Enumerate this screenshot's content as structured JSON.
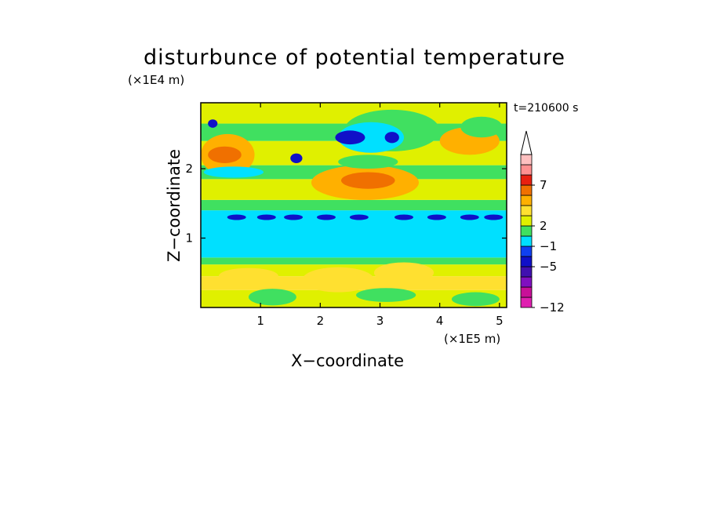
{
  "chart_data": {
    "type": "heatmap",
    "title": "disturbunce of potential temperature",
    "timestamp": "t=210600 s",
    "xlabel": "X−coordinate",
    "ylabel": "Z−coordinate",
    "x_unit": "(×1E5 m)",
    "z_unit": "(×1E4 m)",
    "xlim": [
      0,
      5.12
    ],
    "zlim": [
      0,
      2.95
    ],
    "x_ticks": [
      "1",
      "2",
      "3",
      "4",
      "5"
    ],
    "z_ticks": [
      "1",
      "2"
    ],
    "colorbar": {
      "orientation": "vertical",
      "extend": "max",
      "colors": [
        "#e020b0",
        "#c81098",
        "#8010c0",
        "#4010b0",
        "#1010c8",
        "#1040f0",
        "#00e0ff",
        "#40e060",
        "#e0f000",
        "#ffe030",
        "#ffb000",
        "#f07000",
        "#e82010",
        "#ff9090",
        "#ffc0c0",
        "#ffffff"
      ],
      "labels": [
        "−12",
        "−5",
        "−1",
        "2",
        "7"
      ],
      "label_values": [
        -12,
        -5,
        -1,
        2,
        7
      ]
    },
    "bands": [
      {
        "z": [
          0.0,
          0.25
        ],
        "color": "#e0f000"
      },
      {
        "z": [
          0.25,
          0.45
        ],
        "color": "#ffe030"
      },
      {
        "z": [
          0.45,
          0.62
        ],
        "color": "#e0f000"
      },
      {
        "z": [
          0.62,
          0.72
        ],
        "color": "#40e060"
      },
      {
        "z": [
          0.72,
          1.4
        ],
        "color": "#00e0ff"
      },
      {
        "z": [
          1.4,
          1.55
        ],
        "color": "#40e060"
      },
      {
        "z": [
          1.55,
          1.85
        ],
        "color": "#e0f000"
      },
      {
        "z": [
          1.85,
          2.05
        ],
        "color": "#40e060"
      },
      {
        "z": [
          2.05,
          2.4
        ],
        "color": "#e0f000"
      },
      {
        "z": [
          2.4,
          2.65
        ],
        "color": "#40e060"
      },
      {
        "z": [
          2.65,
          2.95
        ],
        "color": "#e0f000"
      }
    ],
    "blobs": [
      {
        "x": 0.45,
        "z": 2.2,
        "rx": 0.45,
        "rz": 0.3,
        "color": "#ffb000"
      },
      {
        "x": 0.4,
        "z": 2.2,
        "rx": 0.28,
        "rz": 0.12,
        "color": "#f07000"
      },
      {
        "x": 2.75,
        "z": 1.8,
        "rx": 0.9,
        "rz": 0.25,
        "color": "#ffb000"
      },
      {
        "x": 2.8,
        "z": 1.83,
        "rx": 0.45,
        "rz": 0.12,
        "color": "#f07000"
      },
      {
        "x": 4.5,
        "z": 2.4,
        "rx": 0.5,
        "rz": 0.2,
        "color": "#ffb000"
      },
      {
        "x": 3.2,
        "z": 2.55,
        "rx": 0.8,
        "rz": 0.3,
        "color": "#40e060"
      },
      {
        "x": 2.85,
        "z": 2.45,
        "rx": 0.55,
        "rz": 0.22,
        "color": "#00e0ff"
      },
      {
        "x": 2.5,
        "z": 2.45,
        "rx": 0.25,
        "rz": 0.1,
        "color": "#1010c8"
      },
      {
        "x": 3.2,
        "z": 2.45,
        "rx": 0.12,
        "rz": 0.08,
        "color": "#1010c8"
      },
      {
        "x": 2.8,
        "z": 2.1,
        "rx": 0.5,
        "rz": 0.1,
        "color": "#40e060"
      },
      {
        "x": 1.6,
        "z": 2.15,
        "rx": 0.1,
        "rz": 0.07,
        "color": "#1010c8"
      },
      {
        "x": 0.55,
        "z": 1.95,
        "rx": 0.5,
        "rz": 0.08,
        "color": "#00e0ff"
      },
      {
        "x": 4.7,
        "z": 2.6,
        "rx": 0.35,
        "rz": 0.15,
        "color": "#40e060"
      },
      {
        "x": 0.2,
        "z": 2.65,
        "rx": 0.08,
        "rz": 0.06,
        "color": "#1010c8"
      },
      {
        "x": 2.3,
        "z": 0.4,
        "rx": 0.6,
        "rz": 0.18,
        "color": "#ffe030"
      },
      {
        "x": 3.4,
        "z": 0.5,
        "rx": 0.5,
        "rz": 0.15,
        "color": "#ffe030"
      },
      {
        "x": 0.8,
        "z": 0.45,
        "rx": 0.5,
        "rz": 0.12,
        "color": "#ffe030"
      },
      {
        "x": 1.2,
        "z": 0.15,
        "rx": 0.4,
        "rz": 0.12,
        "color": "#40e060"
      },
      {
        "x": 3.1,
        "z": 0.18,
        "rx": 0.5,
        "rz": 0.1,
        "color": "#40e060"
      },
      {
        "x": 4.6,
        "z": 0.12,
        "rx": 0.4,
        "rz": 0.1,
        "color": "#40e060"
      }
    ],
    "low_band": {
      "z": 1.3,
      "x": [
        0.6,
        1.1,
        1.55,
        2.1,
        2.65,
        3.4,
        3.95,
        4.5,
        4.9
      ],
      "color": "#1010c8"
    }
  }
}
